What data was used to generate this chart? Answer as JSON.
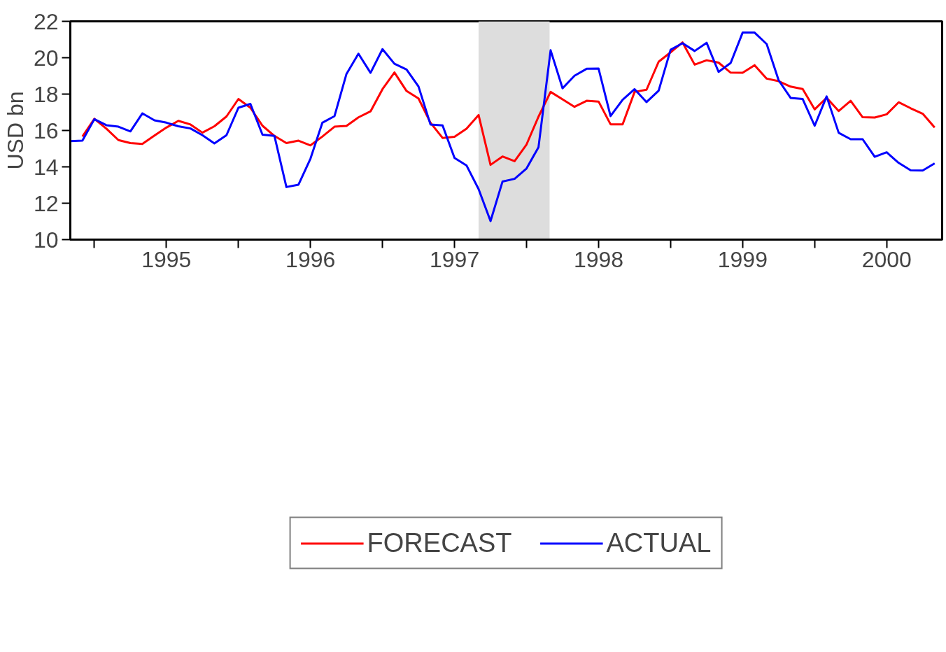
{
  "chart_data": {
    "type": "line",
    "ylabel": "USD bn",
    "x": [
      1994.833,
      1994.917,
      1995.0,
      1995.083,
      1995.167,
      1995.25,
      1995.333,
      1995.417,
      1995.5,
      1995.583,
      1995.667,
      1995.75,
      1995.833,
      1995.917,
      1996.0,
      1996.083,
      1996.167,
      1996.25,
      1996.333,
      1996.417,
      1996.5,
      1996.583,
      1996.667,
      1996.75,
      1996.833,
      1996.917,
      1997.0,
      1997.083,
      1997.167,
      1997.25,
      1997.333,
      1997.417,
      1997.5,
      1997.583,
      1997.667,
      1997.75,
      1997.833,
      1997.917,
      1998.0,
      1998.083,
      1998.167,
      1998.25,
      1998.333,
      1998.417,
      1998.5,
      1998.583,
      1998.667,
      1998.75,
      1998.833,
      1998.917,
      1999.0,
      1999.083,
      1999.167,
      1999.25,
      1999.333,
      1999.417,
      1999.5,
      1999.583,
      1999.667,
      1999.75,
      1999.833,
      1999.917,
      2000.0,
      2000.083,
      2000.167,
      2000.25,
      2000.333,
      2000.417,
      2000.5,
      2000.583,
      2000.667,
      2000.75,
      2000.833
    ],
    "series": [
      {
        "name": "FORECAST",
        "color": "#ff0000",
        "values": [
          null,
          15.67,
          16.64,
          16.1,
          15.47,
          15.31,
          15.26,
          15.72,
          16.16,
          16.53,
          16.33,
          15.88,
          16.23,
          16.77,
          17.73,
          17.25,
          16.26,
          15.7,
          15.31,
          15.44,
          15.18,
          15.67,
          16.21,
          16.25,
          16.72,
          17.05,
          18.27,
          19.19,
          18.17,
          17.76,
          16.43,
          15.59,
          15.65,
          16.1,
          16.85,
          14.11,
          14.57,
          14.31,
          15.23,
          16.76,
          18.12,
          17.71,
          17.3,
          17.63,
          17.59,
          16.34,
          16.34,
          18.12,
          18.24,
          19.78,
          20.3,
          20.84,
          19.62,
          19.86,
          19.73,
          19.18,
          19.17,
          19.59,
          18.85,
          18.71,
          18.41,
          18.28,
          17.16,
          17.8,
          17.07,
          17.63,
          16.73,
          16.71,
          16.89,
          17.55,
          17.22,
          16.92,
          16.16
        ]
      },
      {
        "name": "ACTUAL",
        "color": "#0000ff",
        "values": [
          15.41,
          15.44,
          16.62,
          16.29,
          16.21,
          15.95,
          16.94,
          16.56,
          16.43,
          16.23,
          16.11,
          15.74,
          15.29,
          15.74,
          17.25,
          17.46,
          15.77,
          15.7,
          12.89,
          13.02,
          14.45,
          16.43,
          16.79,
          19.11,
          20.22,
          19.17,
          20.47,
          19.67,
          19.35,
          18.42,
          16.33,
          16.28,
          14.49,
          14.08,
          12.78,
          11.02,
          13.19,
          13.34,
          13.91,
          15.08,
          20.41,
          18.32,
          19.01,
          19.39,
          19.4,
          16.79,
          17.69,
          18.27,
          17.56,
          18.19,
          20.44,
          20.8,
          20.37,
          20.82,
          19.22,
          19.71,
          21.38,
          21.38,
          20.75,
          18.76,
          17.79,
          17.73,
          16.26,
          17.87,
          15.87,
          15.52,
          15.52,
          14.55,
          14.8,
          14.22,
          13.81,
          13.8,
          14.19
        ]
      }
    ],
    "xlim": [
      1994.833,
      2000.885
    ],
    "xticks": [
      {
        "value": 1995,
        "label": null
      },
      {
        "value": 1995.5,
        "label": "1995"
      },
      {
        "value": 1996,
        "label": null
      },
      {
        "value": 1996.5,
        "label": "1996"
      },
      {
        "value": 1997,
        "label": null
      },
      {
        "value": 1997.5,
        "label": "1997"
      },
      {
        "value": 1998,
        "label": null
      },
      {
        "value": 1998.5,
        "label": "1998"
      },
      {
        "value": 1999,
        "label": null
      },
      {
        "value": 1999.5,
        "label": "1999"
      },
      {
        "value": 2000,
        "label": null
      },
      {
        "value": 2000.5,
        "label": "2000"
      }
    ],
    "ylim": [
      10,
      22
    ],
    "yticks": [
      10,
      12,
      14,
      16,
      18,
      20,
      22
    ],
    "bands": [
      {
        "axis": "x",
        "from": 1997.667,
        "to": 1998.16,
        "color": "#dddddd"
      }
    ],
    "grid": false,
    "legend": "bottom",
    "line_style": "solid",
    "marker": "none"
  }
}
